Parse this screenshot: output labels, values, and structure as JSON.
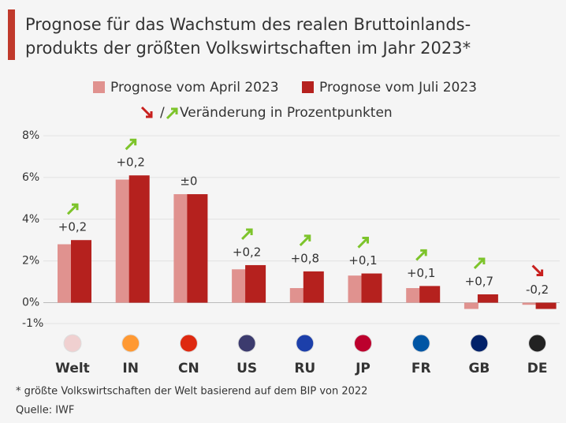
{
  "chart_data": {
    "type": "bar",
    "title": [
      "Prognose für das Wachstum des realen Bruttoinlands-",
      "produkts der größten Volkswirtschaften im Jahr 2023*"
    ],
    "subtitle": "Veränderung in Prozentpunkten",
    "categories": [
      "Welt",
      "IN",
      "CN",
      "US",
      "RU",
      "JP",
      "FR",
      "GB",
      "DE"
    ],
    "series": [
      {
        "name": "Prognose vom April 2023",
        "color": "#e0928f",
        "values": [
          2.8,
          5.9,
          5.2,
          1.6,
          0.7,
          1.3,
          0.7,
          -0.3,
          -0.1
        ]
      },
      {
        "name": "Prognose vom Juli 2023",
        "color": "#b5211e",
        "values": [
          3.0,
          6.1,
          5.2,
          1.8,
          1.5,
          1.4,
          0.8,
          0.4,
          -0.3
        ]
      }
    ],
    "changes": {
      "values": [
        0.2,
        0.2,
        0,
        0.2,
        0.8,
        0.1,
        0.1,
        0.7,
        -0.2
      ],
      "value_labels": [
        "+0,2",
        "+0,2",
        "±0",
        "+0,2",
        "+0,8",
        "+0,1",
        "+0,1",
        "+0,7",
        "-0,2"
      ],
      "up_color": "#7dc42b",
      "down_color": "#c8201e"
    },
    "ylim": [
      -1,
      8
    ],
    "yticks": [
      {
        "value": 8,
        "label": "8%"
      },
      {
        "value": 6,
        "label": "6%"
      },
      {
        "value": 4,
        "label": "4%"
      },
      {
        "value": 2,
        "label": "2%"
      },
      {
        "value": 0,
        "label": "0%"
      },
      {
        "value": -1,
        "label": "-1%"
      }
    ],
    "grid": true,
    "footnote": "* größte Volkswirtschaften der Welt basierend auf dem BIP von 2022",
    "source": "Quelle: IWF"
  }
}
